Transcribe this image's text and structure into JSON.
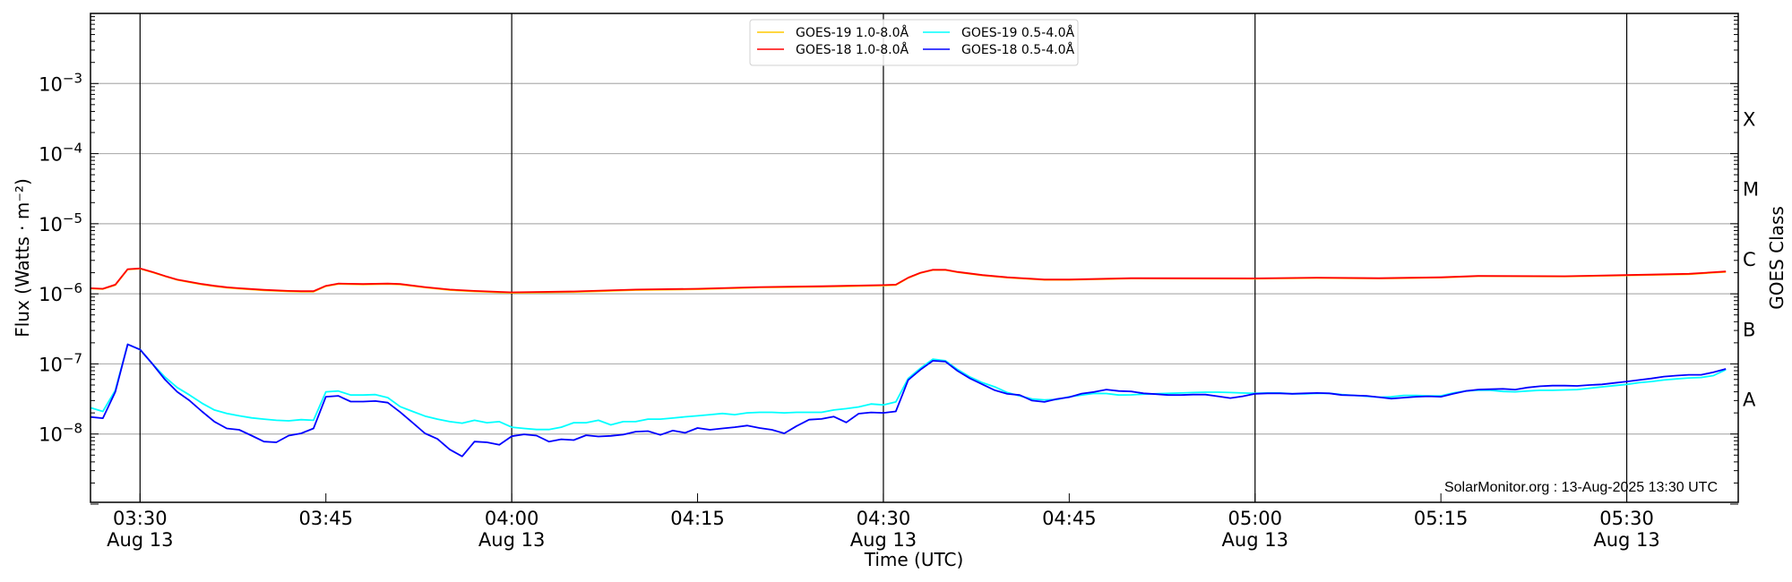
{
  "chart_data": {
    "type": "line",
    "xlabel": "Time (UTC)",
    "ylabel": "Flux (Watts · m⁻²)",
    "y2label": "GOES Class",
    "yscale": "log",
    "ylim": [
      1e-09,
      0.01
    ],
    "xlim": [
      "03:26",
      "05:39"
    ],
    "grid": "horizontal at decades",
    "legend_placement": "top-center",
    "credit": "SolarMonitor.org : 13-Aug-2025 13:30 UTC",
    "y_ticks": [
      1e-08,
      1e-07,
      1e-06,
      1e-05,
      0.0001,
      0.001
    ],
    "x_ticks": [
      {
        "value": "03:30",
        "label": "03:30",
        "sublabel": "Aug 13"
      },
      {
        "value": "03:45",
        "label": "03:45",
        "sublabel": ""
      },
      {
        "value": "04:00",
        "label": "04:00",
        "sublabel": "Aug 13"
      },
      {
        "value": "04:15",
        "label": "04:15",
        "sublabel": ""
      },
      {
        "value": "04:30",
        "label": "04:30",
        "sublabel": "Aug 13"
      },
      {
        "value": "04:45",
        "label": "04:45",
        "sublabel": ""
      },
      {
        "value": "05:00",
        "label": "05:00",
        "sublabel": "Aug 13"
      },
      {
        "value": "05:15",
        "label": "05:15",
        "sublabel": ""
      },
      {
        "value": "05:30",
        "label": "05:30",
        "sublabel": "Aug 13"
      }
    ],
    "vertical_lines": [
      "03:30",
      "04:00",
      "04:30",
      "05:00",
      "05:30"
    ],
    "goes_classes": [
      {
        "label": "A",
        "lower": 1e-08,
        "upper": 1e-07
      },
      {
        "label": "B",
        "lower": 1e-07,
        "upper": 1e-06
      },
      {
        "label": "C",
        "lower": 1e-06,
        "upper": 1e-05
      },
      {
        "label": "M",
        "lower": 1e-05,
        "upper": 0.0001
      },
      {
        "label": "X",
        "lower": 0.0001,
        "upper": 0.001
      }
    ],
    "x": [
      "03:26",
      "03:27",
      "03:28",
      "03:29",
      "03:30",
      "03:31",
      "03:32",
      "03:33",
      "03:34",
      "03:35",
      "03:36",
      "03:37",
      "03:38",
      "03:39",
      "03:40",
      "03:41",
      "03:42",
      "03:43",
      "03:44",
      "03:45",
      "03:46",
      "03:47",
      "03:48",
      "03:49",
      "03:50",
      "03:51",
      "03:52",
      "03:53",
      "03:54",
      "03:55",
      "03:56",
      "03:57",
      "03:58",
      "03:59",
      "04:00",
      "04:01",
      "04:02",
      "04:03",
      "04:04",
      "04:05",
      "04:06",
      "04:07",
      "04:08",
      "04:09",
      "04:10",
      "04:11",
      "04:12",
      "04:13",
      "04:14",
      "04:15",
      "04:16",
      "04:17",
      "04:18",
      "04:19",
      "04:20",
      "04:21",
      "04:22",
      "04:23",
      "04:24",
      "04:25",
      "04:26",
      "04:27",
      "04:28",
      "04:29",
      "04:30",
      "04:31",
      "04:32",
      "04:33",
      "04:34",
      "04:35",
      "04:36",
      "04:37",
      "04:38",
      "04:39",
      "04:40",
      "04:41",
      "04:42",
      "04:43",
      "04:44",
      "04:45",
      "04:46",
      "04:47",
      "04:48",
      "04:49",
      "04:50",
      "04:51",
      "04:52",
      "04:53",
      "04:54",
      "04:55",
      "04:56",
      "04:57",
      "04:58",
      "04:59",
      "05:00",
      "05:01",
      "05:02",
      "05:03",
      "05:04",
      "05:05",
      "05:06",
      "05:07",
      "05:08",
      "05:09",
      "05:10",
      "05:11",
      "05:12",
      "05:13",
      "05:14",
      "05:15",
      "05:16",
      "05:17",
      "05:18",
      "05:19",
      "05:20",
      "05:21",
      "05:22",
      "05:23",
      "05:24",
      "05:25",
      "05:26",
      "05:27",
      "05:28",
      "05:29",
      "05:30",
      "05:31",
      "05:32",
      "05:33",
      "05:34",
      "05:35",
      "05:36",
      "05:37",
      "05:38"
    ],
    "series": [
      {
        "name": "GOES-19 1.0-8.0Å",
        "color": "#ffc800",
        "x": [
          "03:26",
          "03:27",
          "03:28",
          "03:29",
          "03:30",
          "03:31",
          "03:32",
          "03:33",
          "03:34",
          "03:35",
          "03:36",
          "03:37",
          "03:38",
          "03:39",
          "03:40",
          "03:41",
          "03:42",
          "03:43",
          "03:44",
          "03:45",
          "03:46",
          "03:48",
          "03:50",
          "03:51",
          "03:53",
          "03:55",
          "03:57",
          "04:00",
          "04:05",
          "04:10",
          "04:15",
          "04:20",
          "04:25",
          "04:30",
          "04:31",
          "04:32",
          "04:33",
          "04:34",
          "04:35",
          "04:36",
          "04:38",
          "04:40",
          "04:43",
          "04:45",
          "04:50",
          "05:00",
          "05:05",
          "05:10",
          "05:15",
          "05:18",
          "05:25",
          "05:30",
          "05:35",
          "05:38"
        ],
        "values": [
          1.19e-06,
          1.17e-06,
          1.33e-06,
          2.22e-06,
          2.28e-06,
          2.03e-06,
          1.78e-06,
          1.58e-06,
          1.46e-06,
          1.36e-06,
          1.28e-06,
          1.22e-06,
          1.18e-06,
          1.15e-06,
          1.12e-06,
          1.1e-06,
          1.08e-06,
          1.07e-06,
          1.07e-06,
          1.28e-06,
          1.38e-06,
          1.36e-06,
          1.38e-06,
          1.36e-06,
          1.23e-06,
          1.13e-06,
          1.08e-06,
          1.03e-06,
          1.06e-06,
          1.13e-06,
          1.16e-06,
          1.23e-06,
          1.26e-06,
          1.31e-06,
          1.33e-06,
          1.68e-06,
          1.98e-06,
          2.18e-06,
          2.18e-06,
          2.03e-06,
          1.83e-06,
          1.7e-06,
          1.58e-06,
          1.58e-06,
          1.65e-06,
          1.64e-06,
          1.68e-06,
          1.65e-06,
          1.7e-06,
          1.78e-06,
          1.76e-06,
          1.83e-06,
          1.9e-06,
          2.05e-06
        ]
      },
      {
        "name": "GOES-18 1.0-8.0Å",
        "color": "#ff0000",
        "x": [
          "03:26",
          "03:27",
          "03:28",
          "03:29",
          "03:30",
          "03:31",
          "03:32",
          "03:33",
          "03:34",
          "03:35",
          "03:36",
          "03:37",
          "03:38",
          "03:39",
          "03:40",
          "03:41",
          "03:42",
          "03:43",
          "03:44",
          "03:45",
          "03:46",
          "03:48",
          "03:50",
          "03:51",
          "03:53",
          "03:55",
          "03:57",
          "04:00",
          "04:05",
          "04:10",
          "04:15",
          "04:20",
          "04:25",
          "04:30",
          "04:31",
          "04:32",
          "04:33",
          "04:34",
          "04:35",
          "04:36",
          "04:38",
          "04:40",
          "04:43",
          "04:45",
          "04:50",
          "05:00",
          "05:05",
          "05:10",
          "05:15",
          "05:18",
          "05:25",
          "05:30",
          "05:35",
          "05:38"
        ],
        "values": [
          1.2e-06,
          1.18e-06,
          1.35e-06,
          2.25e-06,
          2.3e-06,
          2.05e-06,
          1.8e-06,
          1.6e-06,
          1.48e-06,
          1.38e-06,
          1.3e-06,
          1.24e-06,
          1.2e-06,
          1.17e-06,
          1.14e-06,
          1.12e-06,
          1.1e-06,
          1.09e-06,
          1.09e-06,
          1.3e-06,
          1.4e-06,
          1.38e-06,
          1.4e-06,
          1.38e-06,
          1.25e-06,
          1.15e-06,
          1.1e-06,
          1.05e-06,
          1.08e-06,
          1.15e-06,
          1.18e-06,
          1.25e-06,
          1.28e-06,
          1.33e-06,
          1.35e-06,
          1.7e-06,
          2e-06,
          2.2e-06,
          2.2e-06,
          2.05e-06,
          1.85e-06,
          1.72e-06,
          1.6e-06,
          1.6e-06,
          1.67e-06,
          1.66e-06,
          1.7e-06,
          1.67e-06,
          1.72e-06,
          1.8e-06,
          1.78e-06,
          1.85e-06,
          1.93e-06,
          2.08e-06
        ]
      },
      {
        "name": "GOES-19 0.5-4.0Å",
        "color": "#00ffff",
        "values": [
          2.37e-08,
          2.1e-08,
          4.2e-08,
          1.9e-07,
          1.6e-07,
          1e-07,
          6.5e-08,
          4.6e-08,
          3.6e-08,
          2.75e-08,
          2.2e-08,
          1.96e-08,
          1.82e-08,
          1.7e-08,
          1.63e-08,
          1.57e-08,
          1.54e-08,
          1.6e-08,
          1.57e-08,
          4e-08,
          4.1e-08,
          3.6e-08,
          3.6e-08,
          3.65e-08,
          3.3e-08,
          2.45e-08,
          2.1e-08,
          1.8e-08,
          1.63e-08,
          1.5e-08,
          1.43e-08,
          1.57e-08,
          1.45e-08,
          1.5e-08,
          1.25e-08,
          1.2e-08,
          1.16e-08,
          1.16e-08,
          1.25e-08,
          1.45e-08,
          1.45e-08,
          1.57e-08,
          1.35e-08,
          1.5e-08,
          1.5e-08,
          1.63e-08,
          1.63e-08,
          1.69e-08,
          1.76e-08,
          1.82e-08,
          1.89e-08,
          1.96e-08,
          1.89e-08,
          2e-08,
          2.04e-08,
          2.04e-08,
          2e-08,
          2.04e-08,
          2.04e-08,
          2.04e-08,
          2.2e-08,
          2.3e-08,
          2.43e-08,
          2.68e-08,
          2.6e-08,
          2.87e-08,
          6.2e-08,
          8.7e-08,
          1.17e-07,
          1.11e-07,
          8.3e-08,
          6.5e-08,
          5.4e-08,
          4.7e-08,
          3.9e-08,
          3.5e-08,
          3.16e-08,
          3.07e-08,
          3.1e-08,
          3.4e-08,
          3.6e-08,
          3.8e-08,
          3.78e-08,
          3.6e-08,
          3.62e-08,
          3.7e-08,
          3.75e-08,
          3.8e-08,
          3.85e-08,
          3.9e-08,
          3.95e-08,
          3.95e-08,
          3.9e-08,
          3.85e-08,
          3.8e-08,
          3.85e-08,
          3.85e-08,
          3.75e-08,
          3.75e-08,
          3.8e-08,
          3.8e-08,
          3.65e-08,
          3.55e-08,
          3.45e-08,
          3.35e-08,
          3.4e-08,
          3.55e-08,
          3.55e-08,
          3.5e-08,
          3.5e-08,
          3.85e-08,
          4.1e-08,
          4.2e-08,
          4.2e-08,
          4.05e-08,
          4e-08,
          4.1e-08,
          4.2e-08,
          4.2e-08,
          4.25e-08,
          4.3e-08,
          4.5e-08,
          4.7e-08,
          4.9e-08,
          5.1e-08,
          5.4e-08,
          5.6e-08,
          5.9e-08,
          6.1e-08,
          6.3e-08,
          6.4e-08,
          6.8e-08,
          8.3e-08
        ]
      },
      {
        "name": "GOES-18 0.5-4.0Å",
        "color": "#0000ff",
        "values": [
          1.75e-08,
          1.68e-08,
          4e-08,
          1.9e-07,
          1.6e-07,
          1e-07,
          6e-08,
          4e-08,
          3e-08,
          2.1e-08,
          1.5e-08,
          1.2e-08,
          1.15e-08,
          9.5e-09,
          7.8e-09,
          7.6e-09,
          9.5e-09,
          1.02e-08,
          1.2e-08,
          3.4e-08,
          3.5e-08,
          2.9e-08,
          2.9e-08,
          2.95e-08,
          2.8e-08,
          2.05e-08,
          1.45e-08,
          1.02e-08,
          8.5e-09,
          6e-09,
          4.8e-09,
          7.8e-09,
          7.6e-09,
          7e-09,
          9.3e-09,
          9.9e-09,
          9.5e-09,
          7.8e-09,
          8.4e-09,
          8.2e-09,
          9.6e-09,
          9.2e-09,
          9.4e-09,
          9.8e-09,
          1.08e-08,
          1.1e-08,
          9.7e-09,
          1.12e-08,
          1.04e-08,
          1.22e-08,
          1.15e-08,
          1.2e-08,
          1.25e-08,
          1.32e-08,
          1.22e-08,
          1.15e-08,
          1.02e-08,
          1.3e-08,
          1.6e-08,
          1.64e-08,
          1.77e-08,
          1.46e-08,
          1.95e-08,
          2.03e-08,
          2e-08,
          2.1e-08,
          5.9e-08,
          8.3e-08,
          1.11e-07,
          1.08e-07,
          7.9e-08,
          6.2e-08,
          5.1e-08,
          4.2e-08,
          3.74e-08,
          3.6e-08,
          3e-08,
          2.87e-08,
          3.16e-08,
          3.35e-08,
          3.77e-08,
          3.97e-08,
          4.3e-08,
          4.1e-08,
          4.05e-08,
          3.8e-08,
          3.7e-08,
          3.6e-08,
          3.6e-08,
          3.65e-08,
          3.65e-08,
          3.45e-08,
          3.25e-08,
          3.45e-08,
          3.75e-08,
          3.8e-08,
          3.8e-08,
          3.75e-08,
          3.8e-08,
          3.85e-08,
          3.8e-08,
          3.6e-08,
          3.55e-08,
          3.5e-08,
          3.35e-08,
          3.2e-08,
          3.3e-08,
          3.4e-08,
          3.45e-08,
          3.4e-08,
          3.75e-08,
          4.1e-08,
          4.3e-08,
          4.35e-08,
          4.4e-08,
          4.3e-08,
          4.6e-08,
          4.8e-08,
          4.9e-08,
          4.9e-08,
          4.85e-08,
          5e-08,
          5.1e-08,
          5.35e-08,
          5.6e-08,
          5.9e-08,
          6.2e-08,
          6.6e-08,
          6.8e-08,
          7e-08,
          7e-08,
          7.6e-08,
          8.5e-08
        ]
      }
    ],
    "colors": {
      "grid": "#b0b0b0",
      "axes": "#000000"
    }
  }
}
